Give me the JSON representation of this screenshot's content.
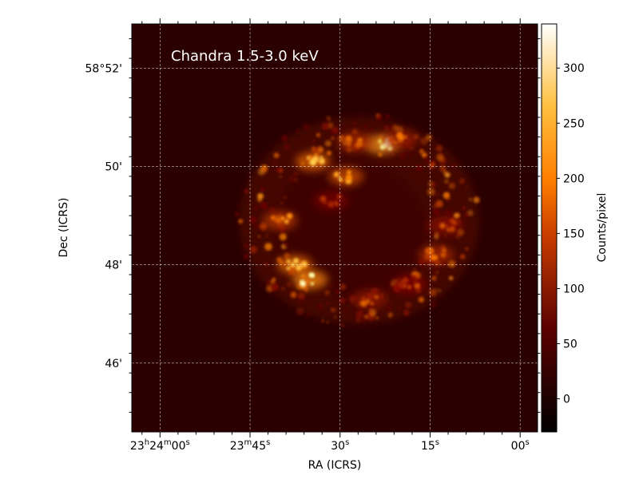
{
  "chart_data": {
    "type": "heatmap",
    "title": "Chandra 1.5-3.0 keV",
    "xlabel": "RA (ICRS)",
    "ylabel": "Dec (ICRS)",
    "colorbar_label": "Counts/pixel",
    "colormap": "afmhot",
    "colors": {
      "background": "#2a0000",
      "grid": "#ffffff",
      "colorbar_low": "#000000",
      "colorbar_mid": "#ff7f00",
      "colorbar_high": "#ffffff"
    },
    "grid": true,
    "color_range": [
      -30,
      340
    ],
    "colorbar_ticks": [
      {
        "value": 0,
        "label": "0"
      },
      {
        "value": 50,
        "label": "50"
      },
      {
        "value": 100,
        "label": "100"
      },
      {
        "value": 150,
        "label": "150"
      },
      {
        "value": 200,
        "label": "200"
      },
      {
        "value": 250,
        "label": "250"
      },
      {
        "value": 300,
        "label": "300"
      }
    ],
    "x_ticks": [
      {
        "ra_seconds": 60,
        "hour": "23",
        "hour_sup": "h",
        "min": "24",
        "min_sup": "m",
        "sec": "00",
        "sec_sup": "s"
      },
      {
        "ra_seconds": 45,
        "hour": "",
        "hour_sup": "",
        "min": "23",
        "min_sup": "m",
        "sec": "45",
        "sec_sup": "s"
      },
      {
        "ra_seconds": 30,
        "hour": "",
        "hour_sup": "",
        "min": "",
        "min_sup": "",
        "sec": "30",
        "sec_sup": "s"
      },
      {
        "ra_seconds": 15,
        "hour": "",
        "hour_sup": "",
        "min": "",
        "min_sup": "",
        "sec": "15",
        "sec_sup": "s"
      },
      {
        "ra_seconds": 0,
        "hour": "",
        "hour_sup": "",
        "min": "",
        "min_sup": "",
        "sec": "00",
        "sec_sup": "s"
      }
    ],
    "y_ticks": [
      {
        "dec_arcmin": 52,
        "label": "58°52'"
      },
      {
        "dec_arcmin": 50,
        "label": "50'"
      },
      {
        "dec_arcmin": 48,
        "label": "48'"
      },
      {
        "dec_arcmin": 46,
        "label": "46'"
      }
    ],
    "xlim_ra_seconds": [
      64.7,
      -2.9
    ],
    "ylim_dec_arcmin": [
      44.6,
      52.9
    ],
    "remnant": {
      "center_ra_seconds": 26.8,
      "center_dec_arcmin": 48.9,
      "features": [
        {
          "ra_seconds": 37.5,
          "dec_arcmin": 48.0,
          "brightness": 260
        },
        {
          "ra_seconds": 35.0,
          "dec_arcmin": 47.7,
          "brightness": 300
        },
        {
          "ra_seconds": 40.0,
          "dec_arcmin": 48.9,
          "brightness": 190
        },
        {
          "ra_seconds": 34.5,
          "dec_arcmin": 50.1,
          "brightness": 250
        },
        {
          "ra_seconds": 23.0,
          "dec_arcmin": 50.45,
          "brightness": 320
        },
        {
          "ra_seconds": 27.5,
          "dec_arcmin": 50.5,
          "brightness": 170
        },
        {
          "ra_seconds": 20.0,
          "dec_arcmin": 50.55,
          "brightness": 150
        },
        {
          "ra_seconds": 14.0,
          "dec_arcmin": 48.2,
          "brightness": 170
        },
        {
          "ra_seconds": 12.5,
          "dec_arcmin": 48.8,
          "brightness": 130
        },
        {
          "ra_seconds": 25.0,
          "dec_arcmin": 47.3,
          "brightness": 140
        },
        {
          "ra_seconds": 18.5,
          "dec_arcmin": 47.6,
          "brightness": 120
        },
        {
          "ra_seconds": 29.0,
          "dec_arcmin": 49.8,
          "brightness": 220
        },
        {
          "ra_seconds": 31.5,
          "dec_arcmin": 49.3,
          "brightness": 110
        }
      ]
    }
  }
}
